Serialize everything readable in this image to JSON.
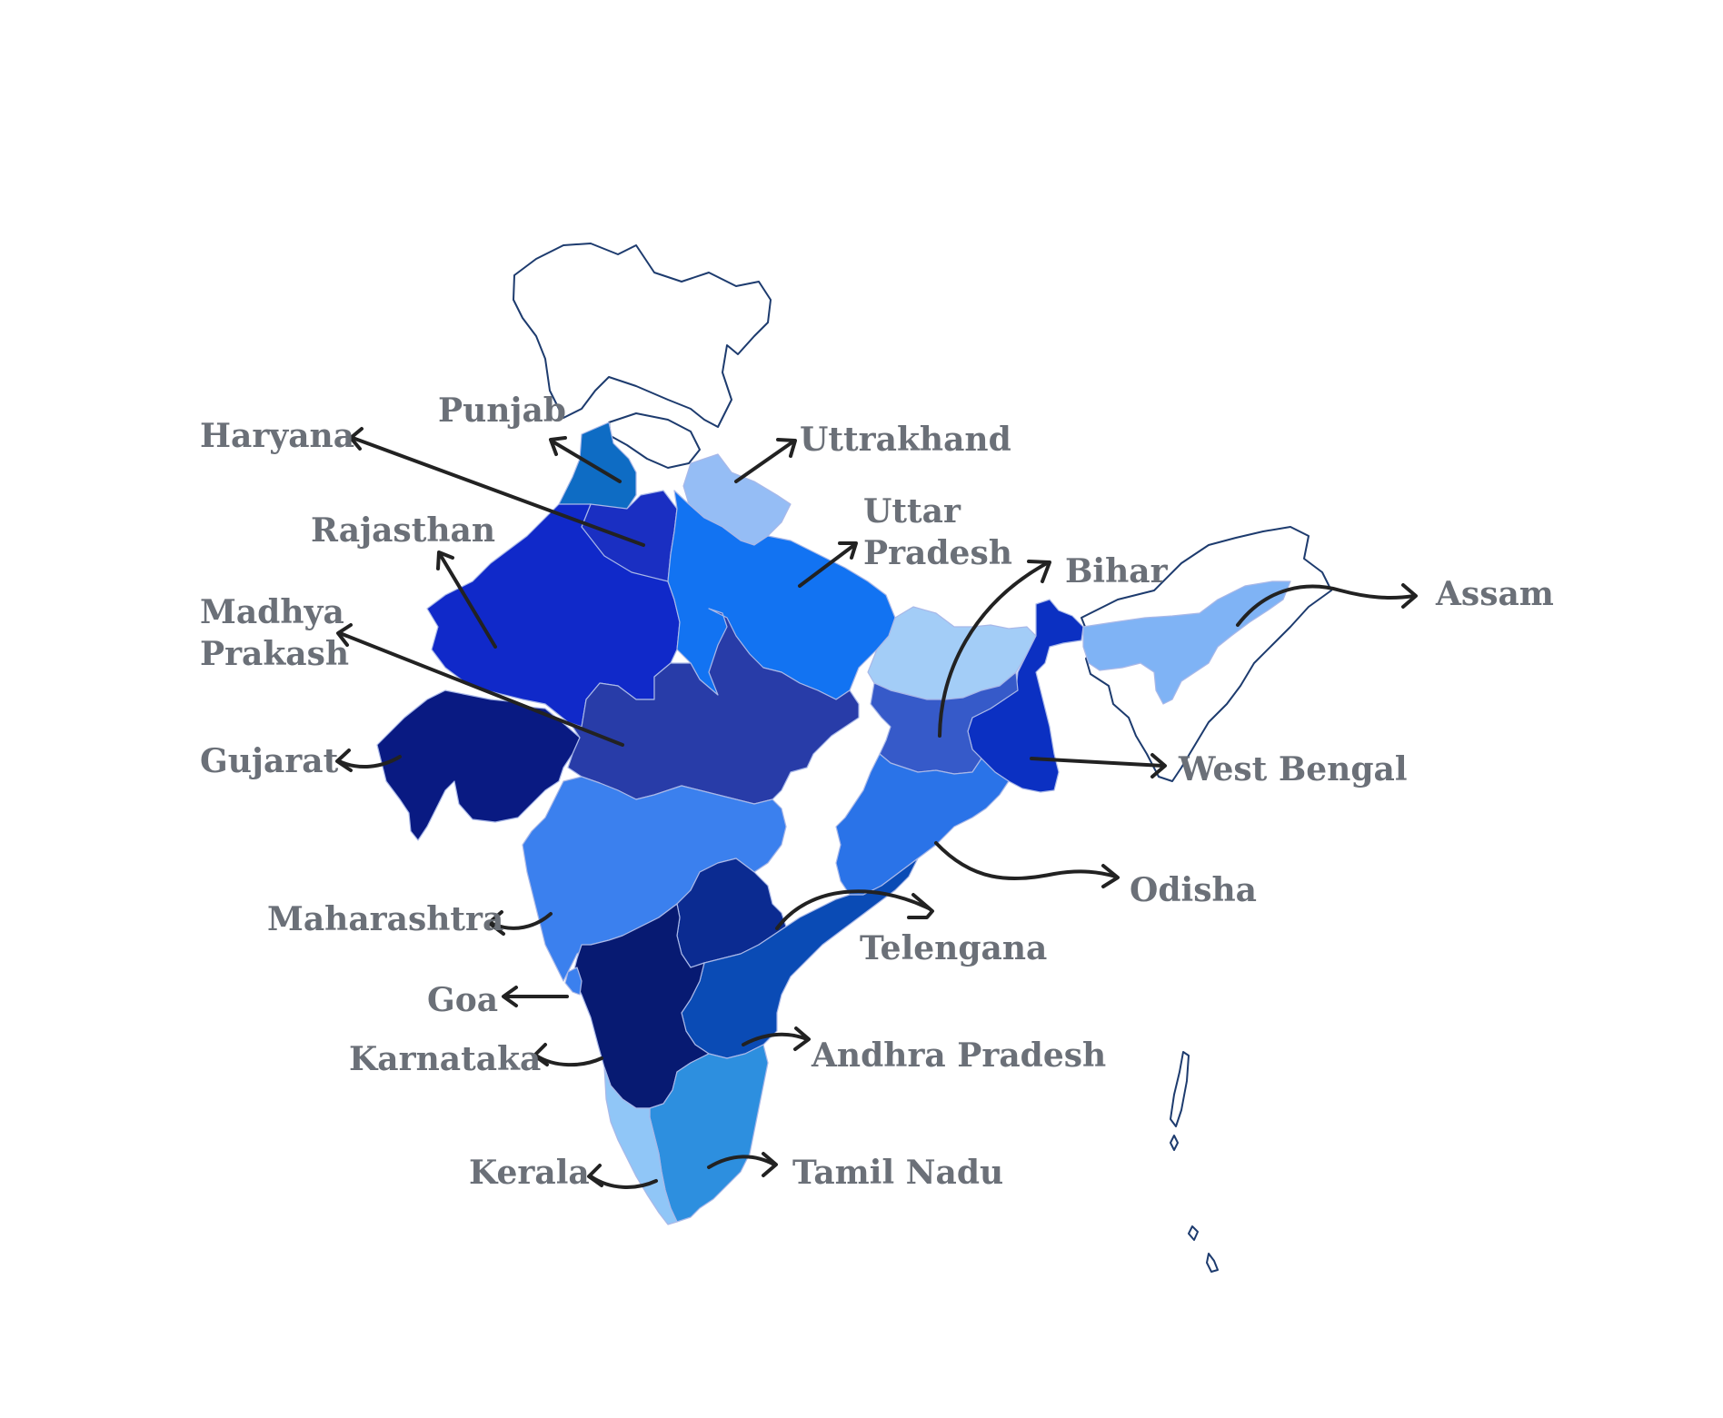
{
  "map": {
    "states": [
      {
        "key": "punjab",
        "label": "Punjab",
        "color": "#0e6cc4"
      },
      {
        "key": "haryana",
        "label": "Haryana",
        "color": "#1a2fc2"
      },
      {
        "key": "uttrakhand",
        "label": "Uttrakhand",
        "color": "#95bdf5"
      },
      {
        "key": "uttar_pradesh",
        "label": "Uttar",
        "label2": "Pradesh",
        "color": "#1273f2"
      },
      {
        "key": "rajasthan",
        "label": "Rajasthan",
        "color": "#1029c9"
      },
      {
        "key": "madhya_pradesh",
        "label": "Madhya",
        "label2": "Prakash",
        "color": "#283ca8"
      },
      {
        "key": "gujarat",
        "label": "Gujarat",
        "color": "#091a82"
      },
      {
        "key": "maharashtra",
        "label": "Maharashtra",
        "color": "#3b80ee"
      },
      {
        "key": "goa",
        "label": "Goa",
        "color": "#3b80ee"
      },
      {
        "key": "karnataka",
        "label": "Karnataka",
        "color": "#071a72"
      },
      {
        "key": "kerala",
        "label": "Kerala",
        "color": "#90c6f7"
      },
      {
        "key": "tamil_nadu",
        "label": "Tamil Nadu",
        "color": "#2d8fdf"
      },
      {
        "key": "andhra_pradesh",
        "label": "Andhra Pradesh",
        "color": "#0a4bb5"
      },
      {
        "key": "telengana",
        "label": "Telengana",
        "color": "#0b2b91"
      },
      {
        "key": "odisha",
        "label": "Odisha",
        "color": "#2a73e8"
      },
      {
        "key": "west_bengal",
        "label": "West Bengal",
        "color": "#0b30c2"
      },
      {
        "key": "bihar",
        "label": "Bihar",
        "color": "#a3cdf7"
      },
      {
        "key": "jharkhand",
        "label": "",
        "color": "#365ac9"
      },
      {
        "key": "assam",
        "label": "Assam",
        "color": "#7fb3f5"
      }
    ],
    "text_color": "#6b7078",
    "arrow_color": "#222222",
    "outline_color": "#1d3b6e"
  }
}
